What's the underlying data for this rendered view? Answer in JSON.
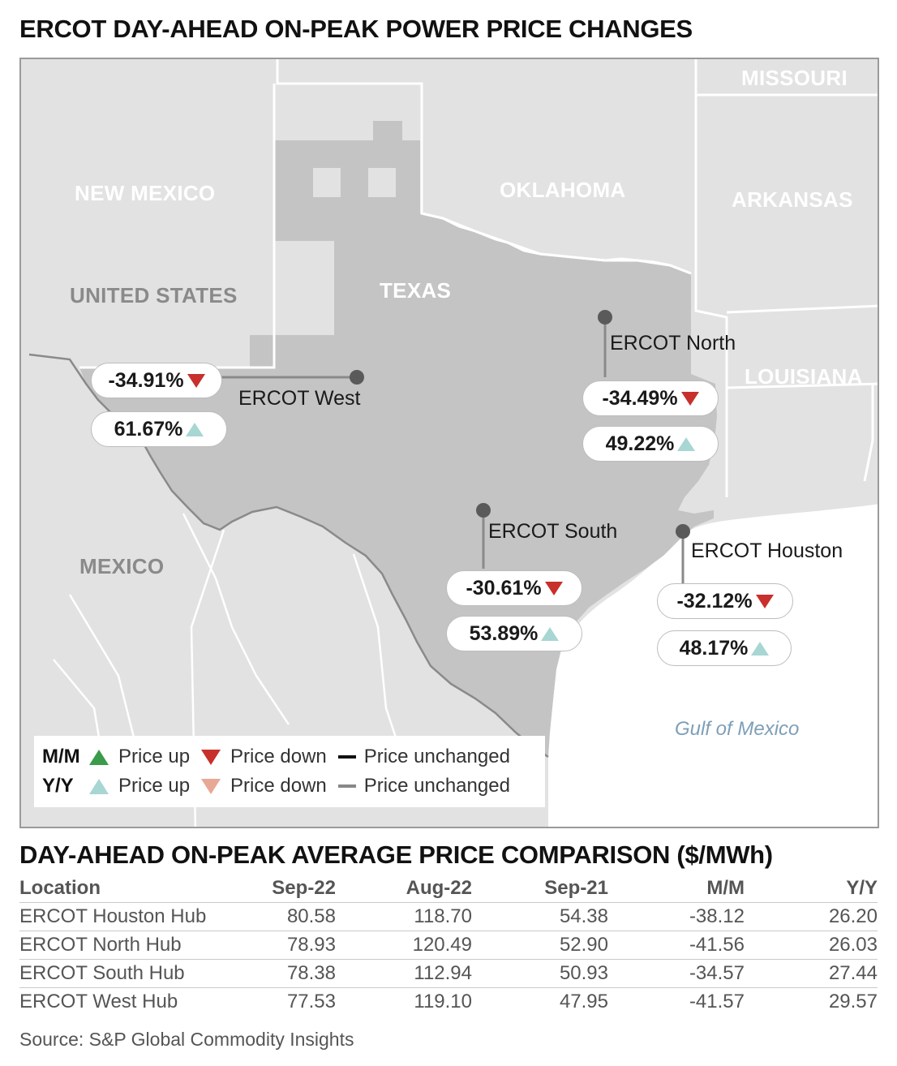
{
  "title": "ERCOT DAY-AHEAD ON-PEAK POWER PRICE CHANGES",
  "map": {
    "regions": {
      "missouri": "MISSOURI",
      "new_mexico": "NEW MEXICO",
      "oklahoma": "OKLAHOMA",
      "arkansas": "ARKANSAS",
      "united_states": "UNITED STATES",
      "texas": "TEXAS",
      "louisiana": "LOUISIANA",
      "mexico": "MEXICO",
      "gulf": "Gulf of Mexico"
    },
    "hubs": {
      "west": {
        "name": "ERCOT West",
        "mm": "-34.91%",
        "yy": "61.67%",
        "mm_dir": "down",
        "yy_dir": "up"
      },
      "north": {
        "name": "ERCOT North",
        "mm": "-34.49%",
        "yy": "49.22%",
        "mm_dir": "down",
        "yy_dir": "up"
      },
      "south": {
        "name": "ERCOT South",
        "mm": "-30.61%",
        "yy": "53.89%",
        "mm_dir": "down",
        "yy_dir": "up"
      },
      "houston": {
        "name": "ERCOT Houston",
        "mm": "-32.12%",
        "yy": "48.17%",
        "mm_dir": "down",
        "yy_dir": "up"
      }
    },
    "colors": {
      "texas_fill": "#c4c4c4",
      "land": "#e2e2e2",
      "down": "#c8302c",
      "up_mm": "#3a9b4a",
      "up_yy": "#a8d6d3",
      "down_yy": "#e8a896"
    }
  },
  "legend": {
    "mm_key": "M/M",
    "yy_key": "Y/Y",
    "price_up": "Price up",
    "price_down": "Price down",
    "price_unchanged": "Price unchanged"
  },
  "table": {
    "title": "DAY-AHEAD ON-PEAK AVERAGE PRICE COMPARISON ($/MWh)",
    "headers": [
      "Location",
      "Sep-22",
      "Aug-22",
      "Sep-21",
      "M/M",
      "Y/Y"
    ],
    "rows": [
      [
        "ERCOT Houston Hub",
        "80.58",
        "118.70",
        "54.38",
        "-38.12",
        "26.20"
      ],
      [
        "ERCOT North Hub",
        "78.93",
        "120.49",
        "52.90",
        "-41.56",
        "26.03"
      ],
      [
        "ERCOT South Hub",
        "78.38",
        "112.94",
        "50.93",
        "-34.57",
        "27.44"
      ],
      [
        "ERCOT West Hub",
        "77.53",
        "119.10",
        "47.95",
        "-41.57",
        "29.57"
      ]
    ]
  },
  "source": "Source: S&P Global Commodity Insights"
}
